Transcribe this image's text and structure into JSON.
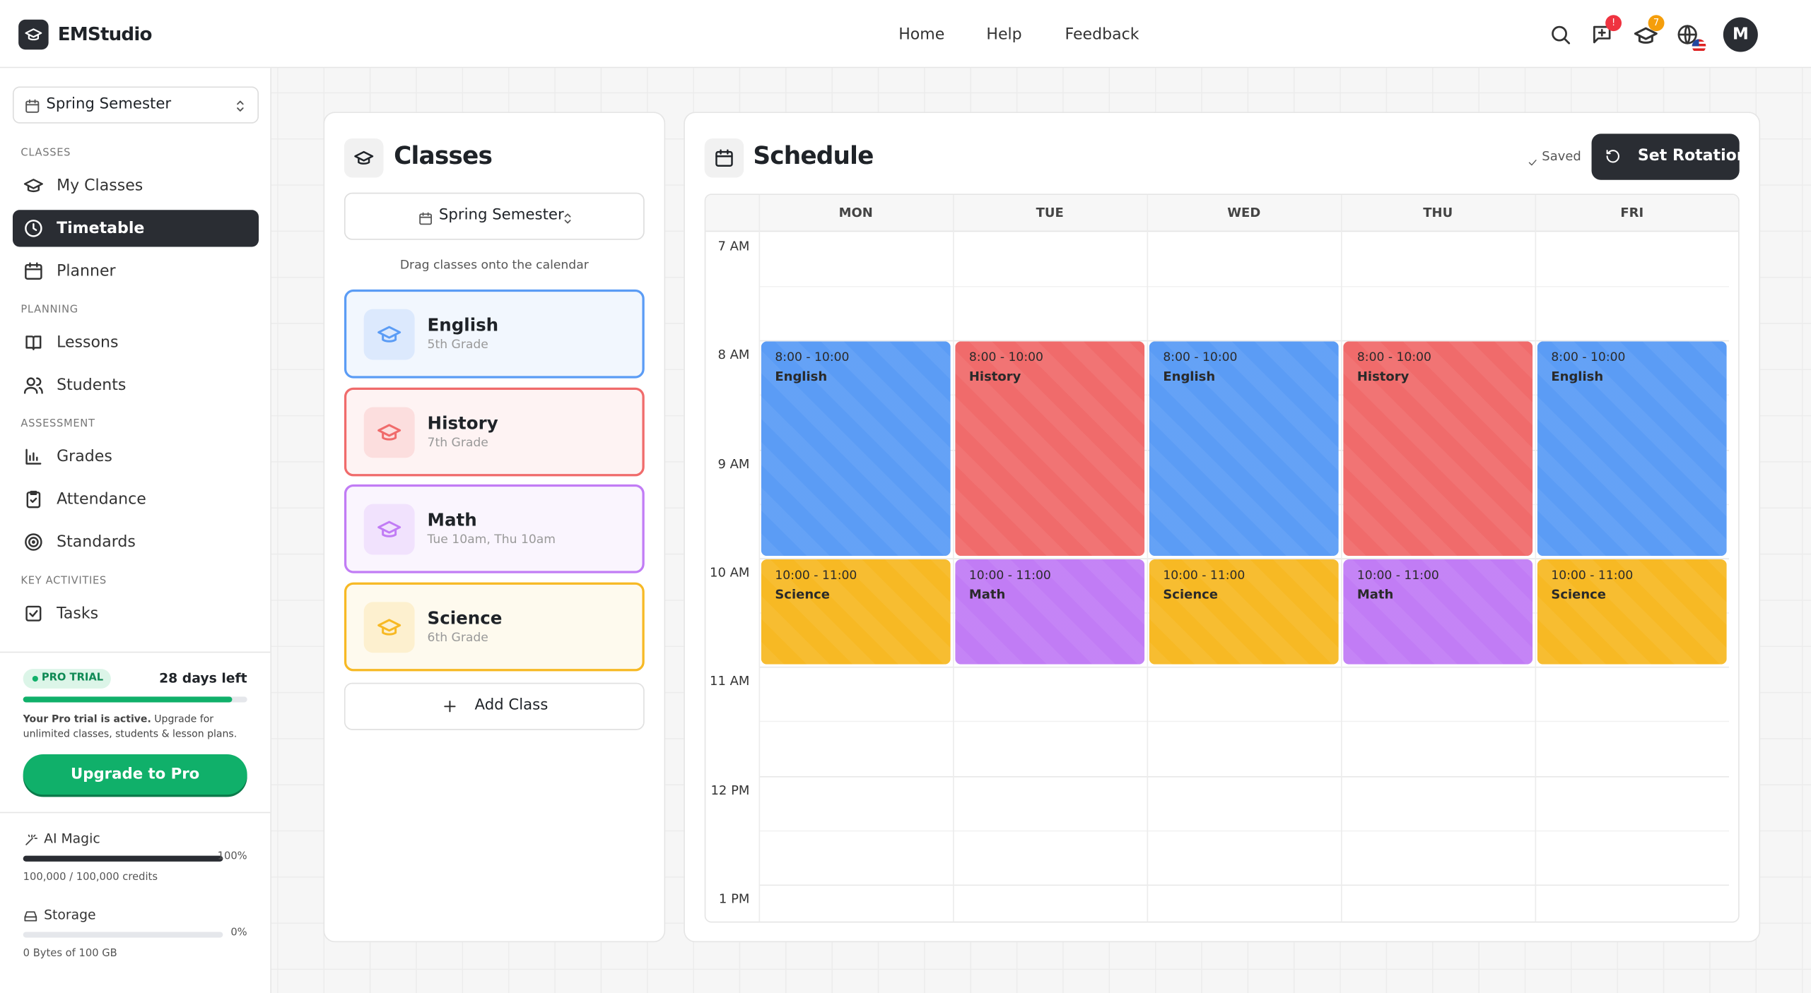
{
  "header": {
    "brand": "EMStudio",
    "nav": [
      "Home",
      "Help",
      "Feedback"
    ],
    "badges": [
      "!",
      "7"
    ],
    "avatar": "M"
  },
  "sidebar": {
    "semester": "Spring Semester",
    "sections": [
      {
        "title": "CLASSES",
        "items": [
          "My Classes",
          "Timetable",
          "Planner"
        ]
      },
      {
        "title": "PLANNING",
        "items": [
          "Lessons",
          "Students"
        ]
      },
      {
        "title": "ASSESSMENT",
        "items": [
          "Grades",
          "Attendance",
          "Standards"
        ]
      },
      {
        "title": "KEY ACTIVITIES",
        "items": [
          "Tasks"
        ]
      }
    ],
    "trial": {
      "badge": "PRO TRIAL",
      "days": "28 days left",
      "note_bold": "Your Pro trial is active.",
      "note": "Upgrade for unlimited classes, students & lesson plans.",
      "button": "Upgrade to Pro"
    },
    "usage": [
      {
        "label": "AI Magic",
        "percent": "100%",
        "detail": "100,000 / 100,000 credits"
      },
      {
        "label": "Storage",
        "percent": "0%",
        "detail": "0 Bytes of 100 GB"
      }
    ]
  },
  "classes": {
    "title": "Classes",
    "semester": "Spring Semester",
    "hint": "Drag classes onto the calendar",
    "items": [
      {
        "name": "English",
        "sub": "5th Grade",
        "color": "#5b9cf5"
      },
      {
        "name": "History",
        "sub": "7th Grade",
        "color": "#f06b6b"
      },
      {
        "name": "Math",
        "sub": "Tue 10am, Thu 10am",
        "color": "#c17cf5"
      },
      {
        "name": "Science",
        "sub": "6th Grade",
        "color": "#f7b924"
      }
    ],
    "add": "Add Class"
  },
  "schedule": {
    "title": "Schedule",
    "status": "Saved",
    "button": "Set Rotation",
    "times": [
      "7 AM",
      "8 AM",
      "9 AM",
      "10 AM",
      "11 AM",
      "12 PM",
      "1 PM"
    ],
    "days": [
      {
        "name": "MON",
        "events": [
          {
            "time": "8:00 - 10:00",
            "name": "English"
          },
          {
            "time": "10:00 - 11:00",
            "name": "Science"
          }
        ]
      },
      {
        "name": "TUE",
        "events": [
          {
            "time": "8:00 - 10:00",
            "name": "History"
          },
          {
            "time": "10:00 - 11:00",
            "name": "Math"
          }
        ]
      },
      {
        "name": "WED",
        "events": [
          {
            "time": "8:00 - 10:00",
            "name": "English"
          },
          {
            "time": "10:00 - 11:00",
            "name": "Science"
          }
        ]
      },
      {
        "name": "THU",
        "events": [
          {
            "time": "8:00 - 10:00",
            "name": "History"
          },
          {
            "time": "10:00 - 11:00",
            "name": "Math"
          }
        ]
      },
      {
        "name": "FRI",
        "events": [
          {
            "time": "8:00 - 10:00",
            "name": "English"
          },
          {
            "time": "10:00 - 11:00",
            "name": "Science"
          }
        ]
      }
    ]
  }
}
